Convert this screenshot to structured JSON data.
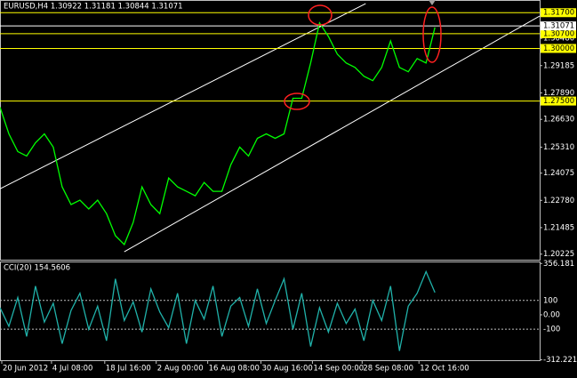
{
  "chart_data": [
    {
      "type": "line",
      "title": "EURUSD,H4  1.30922 1.31181 1.30844 1.31071",
      "x": [
        0,
        5,
        10,
        15,
        20,
        25,
        30,
        35,
        40,
        45,
        50,
        55,
        60,
        65,
        70,
        75,
        80,
        85,
        90,
        95,
        100,
        105,
        110,
        115,
        120,
        125,
        130,
        135,
        140,
        145,
        150,
        155,
        160,
        165,
        170,
        175,
        180,
        185,
        190,
        195,
        200,
        205,
        210,
        215,
        220,
        225,
        230,
        235,
        240,
        245
      ],
      "series": [
        {
          "name": "EURUSD",
          "color": "#00ff00",
          "values": [
            1.2721,
            1.2594,
            1.251,
            1.2489,
            1.2552,
            1.2594,
            1.2531,
            1.2342,
            1.2258,
            1.2279,
            1.2237,
            1.2279,
            1.2215,
            1.211,
            1.2068,
            1.2173,
            1.2342,
            1.2258,
            1.2215,
            1.2384,
            1.2342,
            1.2321,
            1.23,
            1.2363,
            1.2321,
            1.2321,
            1.2447,
            1.2531,
            1.2489,
            1.2573,
            1.2594,
            1.2573,
            1.2594,
            1.2763,
            1.2763,
            1.2931,
            1.3121,
            1.3057,
            1.2973,
            1.2931,
            1.291,
            1.2868,
            1.2847,
            1.291,
            1.3036,
            1.291,
            1.2889,
            1.2952,
            1.2931,
            1.31
          ]
        }
      ],
      "xlim": [
        0,
        304
      ],
      "ylim": [
        1.1996,
        1.3226
      ],
      "yticks": [
        {
          "value": 1.3048,
          "label": "1.30480"
        },
        {
          "value": 1.29185,
          "label": "1.29185"
        },
        {
          "value": 1.2789,
          "label": "1.27890"
        },
        {
          "value": 1.2663,
          "label": "1.26630"
        },
        {
          "value": 1.2531,
          "label": "1.25310"
        },
        {
          "value": 1.24075,
          "label": "1.24075"
        },
        {
          "value": 1.2278,
          "label": "1.22780"
        },
        {
          "value": 1.21485,
          "label": "1.21485"
        },
        {
          "value": 1.20225,
          "label": "1.20225"
        }
      ],
      "hlines": [
        {
          "value": 1.317,
          "label": "1.31700",
          "color": "#ffff00"
        },
        {
          "value": 1.307,
          "label": "1.30700",
          "color": "#ffff00"
        },
        {
          "value": 1.3,
          "label": "1.30000",
          "color": "#ffff00"
        },
        {
          "value": 1.275,
          "label": "1.27500",
          "color": "#ffff00"
        },
        {
          "value": 1.31071,
          "label": "1.31071",
          "color": "#ffffff"
        }
      ],
      "trendlines": [
        {
          "x": [
            0,
            206
          ],
          "y": [
            1.2333,
            1.3213
          ],
          "color": "#ffffff"
        },
        {
          "x": [
            70,
            304
          ],
          "y": [
            1.2034,
            1.3154
          ],
          "color": "#ffffff"
        }
      ]
    },
    {
      "type": "line",
      "title": "CCI(20) 154.5606",
      "x": [
        0,
        5,
        10,
        15,
        20,
        25,
        30,
        35,
        40,
        45,
        50,
        55,
        60,
        65,
        70,
        75,
        80,
        85,
        90,
        95,
        100,
        105,
        110,
        115,
        120,
        125,
        130,
        135,
        140,
        145,
        150,
        155,
        160,
        165,
        170,
        175,
        180,
        185,
        190,
        195,
        200,
        205,
        210,
        215,
        220,
        225,
        230,
        235,
        240,
        245
      ],
      "series": [
        {
          "name": "CCI(20)",
          "color": "#20b2aa",
          "values": [
            50,
            -80,
            120,
            -150,
            200,
            -50,
            80,
            -200,
            30,
            150,
            -100,
            60,
            -180,
            250,
            -40,
            90,
            -120,
            180,
            20,
            -90,
            150,
            -200,
            100,
            -30,
            200,
            -150,
            60,
            120,
            -80,
            180,
            -60,
            100,
            250,
            -100,
            150,
            -220,
            50,
            -120,
            80,
            -60,
            40,
            -180,
            100,
            -40,
            200,
            -250,
            60,
            150,
            300,
            154.5606
          ]
        }
      ],
      "xlim": [
        0,
        304
      ],
      "ylim": [
        -315,
        364
      ],
      "yticks": [
        {
          "value": 356.181,
          "label": "356.181"
        },
        {
          "value": 0,
          "label": "0.00"
        },
        {
          "value": -312.221,
          "label": "-312.221"
        }
      ],
      "hlines": [
        {
          "value": 100,
          "label": "100",
          "color": "#c0c0c0",
          "dashed": true
        },
        {
          "value": -100,
          "label": "-100",
          "color": "#c0c0c0",
          "dashed": true
        }
      ],
      "xticks": [
        {
          "value": 1,
          "label": "20 Jun 2012"
        },
        {
          "value": 29,
          "label": "4 Jul 08:00"
        },
        {
          "value": 59,
          "label": "18 Jul 16:00"
        },
        {
          "value": 88,
          "label": "2 Aug 00:00"
        },
        {
          "value": 117,
          "label": "16 Aug 08:00"
        },
        {
          "value": 147,
          "label": "30 Aug 16:00"
        },
        {
          "value": 176,
          "label": "14 Sep 00:00"
        },
        {
          "value": 204,
          "label": "28 Sep 08:00"
        },
        {
          "value": 236,
          "label": "12 Oct 16:00"
        }
      ]
    }
  ]
}
